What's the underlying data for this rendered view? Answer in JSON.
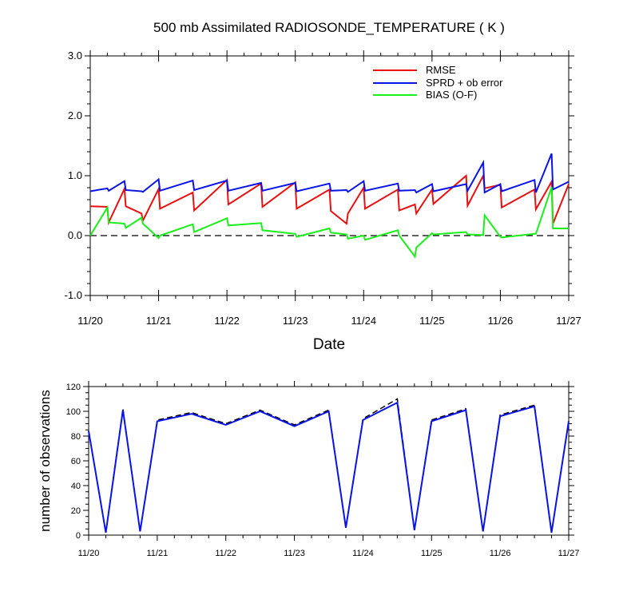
{
  "chart_data": [
    {
      "type": "line",
      "title": "500 mb Assimilated RADIOSONDE_TEMPERATURE ( K )",
      "xlabel": "Date",
      "ylabel": "",
      "xlim": [
        0,
        7
      ],
      "ylim": [
        -1.0,
        3.0
      ],
      "x_ticks": [
        0,
        1,
        2,
        3,
        4,
        5,
        6,
        7
      ],
      "x_tick_labels": [
        "11/20",
        "11/21",
        "11/22",
        "11/23",
        "11/24",
        "11/25",
        "11/26",
        "11/27"
      ],
      "y_ticks": [
        -1.0,
        0.0,
        1.0,
        2.0,
        3.0
      ],
      "y_tick_labels": [
        "-1.0",
        "0.0",
        "1.0",
        "2.0",
        "3.0"
      ],
      "legend_position": "top-right",
      "grid": false,
      "reference_line": {
        "y": 0.0,
        "style": "dashed"
      },
      "series": [
        {
          "name": "RMSE",
          "color": "#e81010",
          "points": [
            [
              0.0,
              0.49
            ],
            [
              0.25,
              0.48
            ],
            [
              0.27,
              0.22
            ],
            [
              0.5,
              0.78
            ],
            [
              0.52,
              0.49
            ],
            [
              0.75,
              0.37
            ],
            [
              0.77,
              0.25
            ],
            [
              1.0,
              0.78
            ],
            [
              1.02,
              0.45
            ],
            [
              1.5,
              0.72
            ],
            [
              1.52,
              0.42
            ],
            [
              2.0,
              0.93
            ],
            [
              2.02,
              0.52
            ],
            [
              2.5,
              0.87
            ],
            [
              2.52,
              0.48
            ],
            [
              3.0,
              0.89
            ],
            [
              3.02,
              0.45
            ],
            [
              3.5,
              0.77
            ],
            [
              3.52,
              0.41
            ],
            [
              3.75,
              0.2
            ],
            [
              3.77,
              0.37
            ],
            [
              4.0,
              0.8
            ],
            [
              4.02,
              0.45
            ],
            [
              4.5,
              0.77
            ],
            [
              4.52,
              0.42
            ],
            [
              4.75,
              0.52
            ],
            [
              4.77,
              0.37
            ],
            [
              5.0,
              0.77
            ],
            [
              5.02,
              0.53
            ],
            [
              5.5,
              1.0
            ],
            [
              5.52,
              0.5
            ],
            [
              5.75,
              1.0
            ],
            [
              5.77,
              0.79
            ],
            [
              6.0,
              0.85
            ],
            [
              6.02,
              0.47
            ],
            [
              6.5,
              0.77
            ],
            [
              6.52,
              0.44
            ],
            [
              6.75,
              0.9
            ],
            [
              6.77,
              0.2
            ],
            [
              7.0,
              0.86
            ]
          ]
        },
        {
          "name": "SPRD + ob error",
          "color": "#0a14e6",
          "points": [
            [
              0.0,
              0.74
            ],
            [
              0.25,
              0.79
            ],
            [
              0.27,
              0.75
            ],
            [
              0.5,
              0.91
            ],
            [
              0.52,
              0.76
            ],
            [
              0.75,
              0.74
            ],
            [
              0.77,
              0.73
            ],
            [
              1.0,
              0.94
            ],
            [
              1.02,
              0.75
            ],
            [
              1.5,
              0.92
            ],
            [
              1.52,
              0.76
            ],
            [
              2.0,
              0.92
            ],
            [
              2.02,
              0.75
            ],
            [
              2.5,
              0.88
            ],
            [
              2.52,
              0.75
            ],
            [
              3.0,
              0.88
            ],
            [
              3.02,
              0.74
            ],
            [
              3.5,
              0.87
            ],
            [
              3.52,
              0.75
            ],
            [
              3.75,
              0.76
            ],
            [
              3.77,
              0.73
            ],
            [
              4.0,
              0.91
            ],
            [
              4.02,
              0.75
            ],
            [
              4.5,
              0.87
            ],
            [
              4.52,
              0.75
            ],
            [
              4.75,
              0.76
            ],
            [
              4.77,
              0.72
            ],
            [
              5.0,
              0.86
            ],
            [
              5.02,
              0.74
            ],
            [
              5.5,
              0.86
            ],
            [
              5.52,
              0.75
            ],
            [
              5.75,
              1.22
            ],
            [
              5.77,
              0.72
            ],
            [
              6.0,
              0.86
            ],
            [
              6.02,
              0.74
            ],
            [
              6.5,
              0.93
            ],
            [
              6.52,
              0.72
            ],
            [
              6.75,
              1.37
            ],
            [
              6.77,
              0.77
            ],
            [
              7.0,
              0.9
            ]
          ]
        },
        {
          "name": "BIAS (O-F)",
          "color": "#19f019",
          "points": [
            [
              0.0,
              0.0
            ],
            [
              0.25,
              0.47
            ],
            [
              0.27,
              0.22
            ],
            [
              0.5,
              0.2
            ],
            [
              0.52,
              0.13
            ],
            [
              0.75,
              0.3
            ],
            [
              0.77,
              0.2
            ],
            [
              1.0,
              -0.04
            ],
            [
              1.02,
              0.0
            ],
            [
              1.5,
              0.19
            ],
            [
              1.52,
              0.06
            ],
            [
              2.0,
              0.29
            ],
            [
              2.02,
              0.17
            ],
            [
              2.5,
              0.21
            ],
            [
              2.52,
              0.09
            ],
            [
              3.0,
              0.03
            ],
            [
              3.02,
              -0.02
            ],
            [
              3.5,
              0.12
            ],
            [
              3.52,
              0.05
            ],
            [
              3.75,
              0.02
            ],
            [
              3.77,
              -0.05
            ],
            [
              4.0,
              0.0
            ],
            [
              4.02,
              -0.07
            ],
            [
              4.5,
              0.09
            ],
            [
              4.52,
              0.0
            ],
            [
              4.75,
              -0.35
            ],
            [
              4.77,
              -0.2
            ],
            [
              5.0,
              0.04
            ],
            [
              5.02,
              0.02
            ],
            [
              5.5,
              0.06
            ],
            [
              5.52,
              0.02
            ],
            [
              5.75,
              0.01
            ],
            [
              5.77,
              0.34
            ],
            [
              6.0,
              -0.02
            ],
            [
              6.02,
              -0.03
            ],
            [
              6.5,
              0.03
            ],
            [
              6.52,
              0.03
            ],
            [
              6.75,
              0.81
            ],
            [
              6.77,
              0.12
            ],
            [
              7.0,
              0.12
            ]
          ]
        }
      ]
    },
    {
      "type": "line",
      "title": "",
      "xlabel": "",
      "ylabel": "number of observations",
      "xlim": [
        0,
        7
      ],
      "ylim": [
        0,
        120
      ],
      "x_ticks": [
        0,
        1,
        2,
        3,
        4,
        5,
        6,
        7
      ],
      "x_tick_labels": [
        "11/20",
        "11/21",
        "11/22",
        "11/23",
        "11/24",
        "11/25",
        "11/26",
        "11/27"
      ],
      "y_ticks": [
        0,
        20,
        40,
        60,
        80,
        100,
        120
      ],
      "y_tick_labels": [
        "0",
        "20",
        "40",
        "60",
        "80",
        "100",
        "120"
      ],
      "grid": false,
      "series": [
        {
          "color": "#000000",
          "style": "dashed",
          "points": [
            [
              0.0,
              84
            ],
            [
              0.25,
              2
            ],
            [
              0.5,
              102
            ],
            [
              0.75,
              3
            ],
            [
              1.0,
              93
            ],
            [
              1.5,
              99
            ],
            [
              2.0,
              90
            ],
            [
              2.5,
              101
            ],
            [
              3.0,
              89
            ],
            [
              3.5,
              101
            ],
            [
              3.75,
              6
            ],
            [
              4.0,
              94
            ],
            [
              4.5,
              110
            ],
            [
              4.75,
              4
            ],
            [
              5.0,
              93
            ],
            [
              5.5,
              102
            ],
            [
              5.75,
              3
            ],
            [
              6.0,
              97
            ],
            [
              6.5,
              105
            ],
            [
              6.75,
              2
            ],
            [
              7.0,
              92
            ]
          ]
        },
        {
          "color": "#0a14e6",
          "style": "solid",
          "points": [
            [
              0.0,
              84
            ],
            [
              0.25,
              2
            ],
            [
              0.5,
              101
            ],
            [
              0.75,
              3
            ],
            [
              1.0,
              92
            ],
            [
              1.5,
              98
            ],
            [
              2.0,
              89
            ],
            [
              2.5,
              100
            ],
            [
              3.0,
              88
            ],
            [
              3.5,
              100
            ],
            [
              3.75,
              6
            ],
            [
              4.0,
              93
            ],
            [
              4.5,
              107
            ],
            [
              4.75,
              4
            ],
            [
              5.0,
              92
            ],
            [
              5.5,
              101
            ],
            [
              5.75,
              3
            ],
            [
              6.0,
              96
            ],
            [
              6.5,
              104
            ],
            [
              6.75,
              2
            ],
            [
              7.0,
              92
            ]
          ]
        }
      ]
    }
  ]
}
